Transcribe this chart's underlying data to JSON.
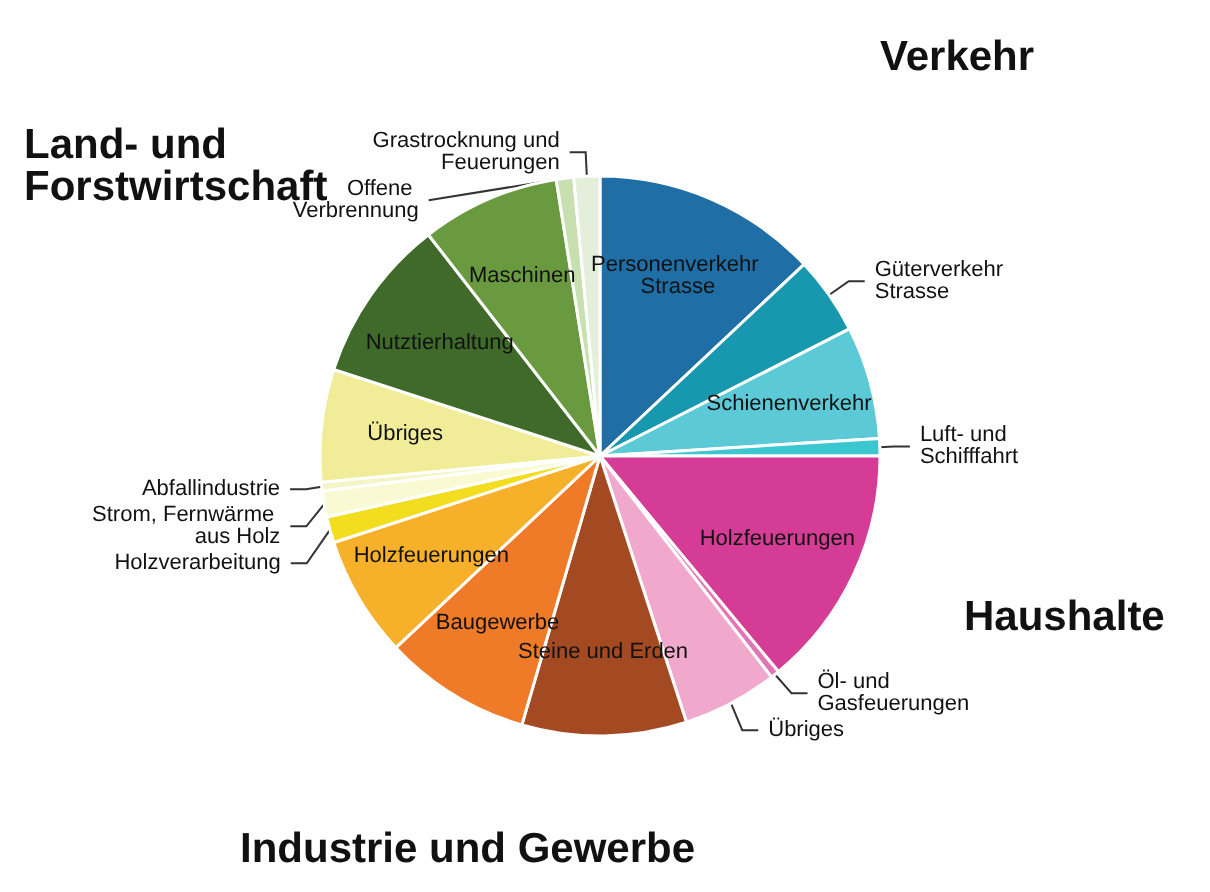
{
  "chart_data": {
    "type": "pie",
    "categories": [
      "Personenverkehr Strasse",
      "Güterverkehr Strasse",
      "Schienenverkehr",
      "Luft- und Schifffahrt",
      "Holzfeuerungen",
      "Öl- und Gasfeuerungen",
      "Übriges",
      "Steine und Erden",
      "Baugewerbe",
      "Holzfeuerungen",
      "Holzverarbeitung",
      "Strom, Fernwärme aus Holz",
      "Abfallindustrie",
      "Übriges",
      "Nutztierhaltung",
      "Maschinen",
      "Offene Verbrennung",
      "Grastrocknung und Feuerungen"
    ],
    "values": [
      13,
      4.5,
      6.5,
      1,
      14,
      0.5,
      5.5,
      9.5,
      8.5,
      7,
      1.5,
      1.5,
      0.5,
      6.5,
      9.5,
      8,
      1,
      1.5
    ],
    "colors": [
      "#1f6ea6",
      "#1898ae",
      "#5cc9d6",
      "#3cc6cf",
      "#d43c96",
      "#e276b4",
      "#f0a9cc",
      "#a44a22",
      "#ef7b29",
      "#f7b02a",
      "#f2de1e",
      "#fafad2",
      "#f4f4c4",
      "#f0ec98",
      "#3f6a2a",
      "#6a9a40",
      "#c8e0b0",
      "#e4efdb"
    ],
    "annotations": [
      "Verkehr",
      "Haushalte",
      "Industrie und Gewerbe",
      "Land- und Forstwirtschaft"
    ],
    "legend": false
  }
}
